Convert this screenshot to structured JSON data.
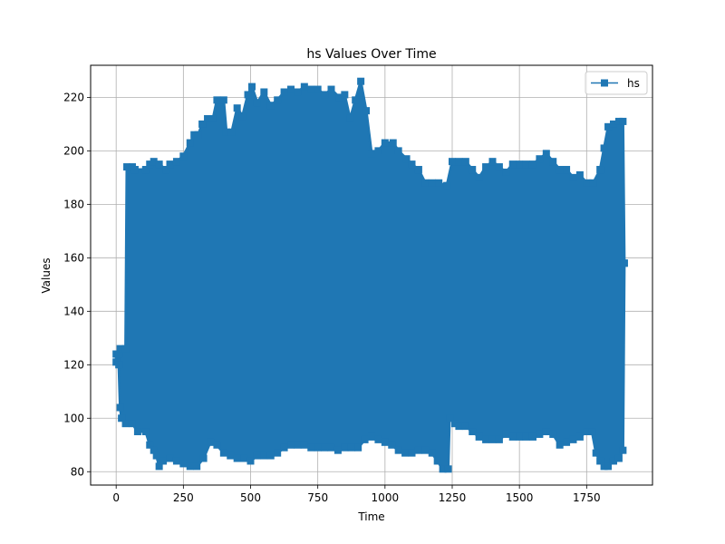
{
  "chart_data": {
    "type": "line",
    "title": "hs Values Over Time",
    "xlabel": "Time",
    "ylabel": "Values",
    "xlim": [
      -95,
      1995
    ],
    "ylim": [
      75,
      232
    ],
    "xticks": [
      0,
      250,
      500,
      750,
      1000,
      1250,
      1500,
      1750
    ],
    "yticks": [
      80,
      100,
      120,
      140,
      160,
      180,
      200,
      220
    ],
    "grid": true,
    "legend_position": "top-right",
    "marker": "square",
    "series": [
      {
        "name": "hs",
        "color": "#1f77b4",
        "upper_envelope": [
          [
            0,
            124
          ],
          [
            10,
            124
          ],
          [
            15,
            126
          ],
          [
            35,
            126
          ],
          [
            40,
            194
          ],
          [
            60,
            194
          ],
          [
            70,
            193
          ],
          [
            110,
            193
          ],
          [
            125,
            195
          ],
          [
            140,
            196
          ],
          [
            160,
            195
          ],
          [
            185,
            193
          ],
          [
            200,
            195
          ],
          [
            225,
            196
          ],
          [
            250,
            198
          ],
          [
            275,
            203
          ],
          [
            290,
            206
          ],
          [
            305,
            206
          ],
          [
            320,
            210
          ],
          [
            340,
            212
          ],
          [
            360,
            212
          ],
          [
            375,
            219
          ],
          [
            400,
            219
          ],
          [
            410,
            207
          ],
          [
            430,
            207
          ],
          [
            450,
            216
          ],
          [
            470,
            213
          ],
          [
            490,
            221
          ],
          [
            505,
            224
          ],
          [
            525,
            218
          ],
          [
            550,
            222
          ],
          [
            575,
            217
          ],
          [
            600,
            219
          ],
          [
            625,
            222
          ],
          [
            650,
            223
          ],
          [
            675,
            222
          ],
          [
            700,
            224
          ],
          [
            725,
            223
          ],
          [
            750,
            223
          ],
          [
            775,
            221
          ],
          [
            800,
            223
          ],
          [
            830,
            220
          ],
          [
            850,
            221
          ],
          [
            870,
            212
          ],
          [
            890,
            219
          ],
          [
            910,
            226
          ],
          [
            930,
            215
          ],
          [
            950,
            199
          ],
          [
            975,
            200
          ],
          [
            1000,
            203
          ],
          [
            1030,
            203
          ],
          [
            1050,
            200
          ],
          [
            1080,
            197
          ],
          [
            1100,
            195
          ],
          [
            1125,
            193
          ],
          [
            1150,
            188
          ],
          [
            1175,
            188
          ],
          [
            1200,
            188
          ],
          [
            1230,
            187
          ],
          [
            1250,
            196
          ],
          [
            1275,
            196
          ],
          [
            1300,
            196
          ],
          [
            1325,
            193
          ],
          [
            1350,
            190
          ],
          [
            1375,
            194
          ],
          [
            1400,
            196
          ],
          [
            1425,
            194
          ],
          [
            1450,
            192
          ],
          [
            1475,
            195
          ],
          [
            1500,
            195
          ],
          [
            1525,
            195
          ],
          [
            1550,
            195
          ],
          [
            1575,
            197
          ],
          [
            1600,
            199
          ],
          [
            1625,
            196
          ],
          [
            1650,
            193
          ],
          [
            1675,
            193
          ],
          [
            1700,
            190
          ],
          [
            1725,
            191
          ],
          [
            1750,
            188
          ],
          [
            1775,
            188
          ],
          [
            1800,
            193
          ],
          [
            1815,
            201
          ],
          [
            1830,
            209
          ],
          [
            1850,
            210
          ],
          [
            1870,
            211
          ],
          [
            1885,
            211
          ],
          [
            1890,
            158
          ]
        ],
        "lower_envelope": [
          [
            0,
            121
          ],
          [
            10,
            120
          ],
          [
            15,
            104
          ],
          [
            20,
            100
          ],
          [
            35,
            98
          ],
          [
            60,
            98
          ],
          [
            80,
            95
          ],
          [
            110,
            95
          ],
          [
            125,
            90
          ],
          [
            140,
            88
          ],
          [
            150,
            86
          ],
          [
            160,
            82
          ],
          [
            175,
            84
          ],
          [
            200,
            85
          ],
          [
            225,
            84
          ],
          [
            250,
            83
          ],
          [
            275,
            82
          ],
          [
            300,
            82
          ],
          [
            325,
            85
          ],
          [
            350,
            91
          ],
          [
            375,
            90
          ],
          [
            400,
            87
          ],
          [
            425,
            86
          ],
          [
            450,
            85
          ],
          [
            475,
            85
          ],
          [
            500,
            84
          ],
          [
            525,
            86
          ],
          [
            550,
            86
          ],
          [
            575,
            86
          ],
          [
            600,
            87
          ],
          [
            625,
            89
          ],
          [
            650,
            90
          ],
          [
            675,
            90
          ],
          [
            700,
            90
          ],
          [
            725,
            89
          ],
          [
            750,
            89
          ],
          [
            775,
            89
          ],
          [
            800,
            89
          ],
          [
            825,
            88
          ],
          [
            850,
            89
          ],
          [
            875,
            89
          ],
          [
            900,
            89
          ],
          [
            925,
            92
          ],
          [
            950,
            93
          ],
          [
            975,
            92
          ],
          [
            1000,
            91
          ],
          [
            1025,
            90
          ],
          [
            1050,
            88
          ],
          [
            1075,
            87
          ],
          [
            1100,
            87
          ],
          [
            1125,
            88
          ],
          [
            1150,
            88
          ],
          [
            1175,
            87
          ],
          [
            1195,
            84
          ],
          [
            1215,
            81
          ],
          [
            1235,
            81
          ],
          [
            1240,
            100
          ],
          [
            1260,
            98
          ],
          [
            1275,
            97
          ],
          [
            1300,
            97
          ],
          [
            1325,
            95
          ],
          [
            1350,
            93
          ],
          [
            1375,
            92
          ],
          [
            1400,
            92
          ],
          [
            1425,
            92
          ],
          [
            1450,
            94
          ],
          [
            1475,
            93
          ],
          [
            1500,
            93
          ],
          [
            1525,
            93
          ],
          [
            1550,
            93
          ],
          [
            1575,
            94
          ],
          [
            1600,
            95
          ],
          [
            1625,
            94
          ],
          [
            1650,
            90
          ],
          [
            1675,
            91
          ],
          [
            1700,
            92
          ],
          [
            1725,
            93
          ],
          [
            1750,
            95
          ],
          [
            1770,
            95
          ],
          [
            1785,
            87
          ],
          [
            1800,
            84
          ],
          [
            1815,
            82
          ],
          [
            1830,
            82
          ],
          [
            1850,
            84
          ],
          [
            1870,
            85
          ],
          [
            1885,
            88
          ],
          [
            1890,
            158
          ]
        ]
      }
    ]
  }
}
